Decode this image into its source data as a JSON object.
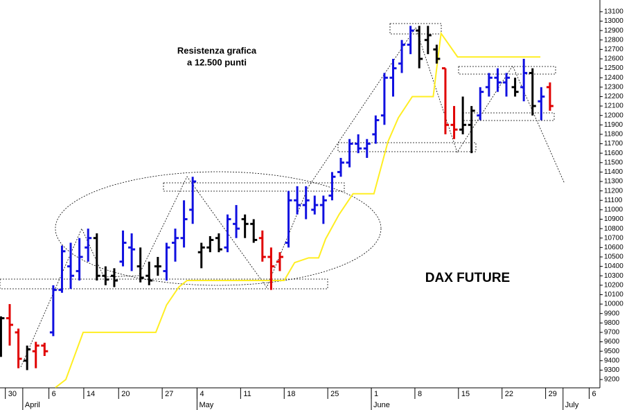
{
  "chart_data": {
    "type": "ohlc",
    "annotations": [
      [
        "Resistenza grafica",
        "a 12.500 punti"
      ],
      "DAX FUTURE"
    ],
    "x": [
      -1,
      0,
      1,
      2,
      3,
      4,
      5,
      6,
      7,
      8,
      9,
      10,
      11,
      12,
      13,
      14,
      15,
      16,
      17,
      18,
      19,
      20,
      21,
      22,
      23,
      24,
      25,
      26,
      27,
      28,
      29,
      30,
      31,
      32,
      33,
      34,
      35,
      36,
      37,
      38,
      39,
      40,
      41,
      42,
      43,
      44,
      45,
      46,
      47,
      48,
      49,
      50,
      51,
      52,
      53,
      54,
      55,
      56,
      57,
      58,
      59,
      60,
      61,
      62
    ],
    "open": [
      9520,
      9850,
      9700,
      9400,
      9500,
      9560,
      9700,
      10150,
      10400,
      10350,
      10600,
      10700,
      10300,
      10300,
      10450,
      10600,
      10400,
      10300,
      10400,
      10350,
      10650,
      10700,
      11000,
      10550,
      10600,
      10700,
      10600,
      10850,
      10900,
      10850,
      10700,
      10500,
      10450,
      10650,
      11100,
      11050,
      11000,
      11050,
      11150,
      11400,
      11500,
      11700,
      11650,
      11800,
      12000,
      12400,
      12550,
      12750,
      12900,
      12800,
      12700,
      12500,
      11900,
      11850,
      11900,
      12000,
      12300,
      12400,
      12350,
      12300,
      12300,
      12450,
      12150,
      12300
    ],
    "high": [
      9870,
      10000,
      9740,
      9560,
      9600,
      9590,
      10200,
      10620,
      10650,
      10700,
      10800,
      10750,
      10400,
      10380,
      10780,
      10750,
      10600,
      10450,
      10500,
      10650,
      10800,
      11100,
      11350,
      10650,
      10720,
      10750,
      10950,
      11050,
      10950,
      10900,
      10780,
      10600,
      10550,
      11200,
      11250,
      11250,
      11150,
      11150,
      11400,
      11550,
      11750,
      11800,
      11750,
      12000,
      12450,
      12600,
      12800,
      12950,
      12950,
      12950,
      12750,
      12500,
      12100,
      12200,
      12100,
      12300,
      12450,
      12500,
      12450,
      12400,
      12600,
      12500,
      12300,
      12350
    ],
    "low": [
      9440,
      9560,
      9320,
      9300,
      9320,
      9450,
      9660,
      10120,
      10160,
      10250,
      10450,
      10250,
      10200,
      10180,
      10400,
      10350,
      10230,
      10200,
      10300,
      10250,
      10450,
      10600,
      10850,
      10380,
      10550,
      10550,
      10550,
      10700,
      10700,
      10650,
      10450,
      10150,
      10350,
      10600,
      10950,
      10900,
      10950,
      10850,
      11100,
      11350,
      11450,
      11600,
      11550,
      11700,
      11900,
      12200,
      12450,
      12650,
      12500,
      12650,
      12550,
      11800,
      11750,
      11800,
      11600,
      11950,
      12200,
      12250,
      12200,
      12200,
      12150,
      12000,
      11950,
      12050
    ],
    "close": [
      9850,
      9780,
      9420,
      9520,
      9560,
      9500,
      10150,
      10560,
      10300,
      10500,
      10700,
      10300,
      10260,
      10250,
      10650,
      10580,
      10280,
      10250,
      10400,
      10600,
      10700,
      10900,
      11300,
      10600,
      10680,
      10580,
      10900,
      10800,
      10850,
      10680,
      10500,
      10400,
      10500,
      11100,
      11050,
      11100,
      11050,
      11100,
      11350,
      11500,
      11700,
      11650,
      11700,
      11950,
      12400,
      12500,
      12750,
      12900,
      12600,
      12850,
      12600,
      11900,
      11850,
      11900,
      12050,
      12250,
      12400,
      12350,
      12400,
      12250,
      12450,
      12100,
      12200,
      12100
    ],
    "colors": [
      "#000000",
      "#e00000",
      "#e00000",
      "#000000",
      "#e00000",
      "#e00000",
      "#1010e0",
      "#1010e0",
      "#1010e0",
      "#1010e0",
      "#1010e0",
      "#000000",
      "#000000",
      "#000000",
      "#1010e0",
      "#1010e0",
      "#000000",
      "#000000",
      "#000000",
      "#1010e0",
      "#1010e0",
      "#1010e0",
      "#1010e0",
      "#000000",
      "#000000",
      "#000000",
      "#1010e0",
      "#1010e0",
      "#000000",
      "#000000",
      "#e00000",
      "#e00000",
      "#e00000",
      "#1010e0",
      "#1010e0",
      "#1010e0",
      "#1010e0",
      "#1010e0",
      "#1010e0",
      "#1010e0",
      "#1010e0",
      "#1010e0",
      "#1010e0",
      "#1010e0",
      "#1010e0",
      "#1010e0",
      "#1010e0",
      "#1010e0",
      "#000000",
      "#000000",
      "#000000",
      "#e00000",
      "#e00000",
      "#000000",
      "#000000",
      "#1010e0",
      "#1010e0",
      "#1010e0",
      "#1010e0",
      "#000000",
      "#1010e0",
      "#000000",
      "#1010e0",
      "#e00000"
    ],
    "overlay": {
      "color": "#ffee22",
      "x": [
        5.25,
        6.44,
        8.43,
        16.77,
        18.0,
        19.4,
        20.35,
        31.5,
        32.7,
        34.3,
        35.45,
        36.25,
        37.8,
        39.4,
        41.8,
        43.4,
        44.6,
        46.2,
        48.6,
        49.5,
        51.4,
        60.9
      ],
      "values": [
        9115,
        9200,
        9700,
        9700,
        9990,
        10180,
        10250,
        10250,
        10440,
        10490,
        10490,
        10690,
        10950,
        11170,
        11170,
        11720,
        11975,
        12200,
        12200,
        12870,
        12620,
        12620
      ]
    },
    "xlim": [
      -1.113,
      67.73
    ],
    "ylim": [
      9112,
      13224
    ],
    "xticks": [
      {
        "value": 0,
        "label": "30"
      },
      {
        "value": 5,
        "label": "6"
      },
      {
        "value": 9,
        "label": "14"
      },
      {
        "value": 13,
        "label": "20"
      },
      {
        "value": 18,
        "label": "27"
      },
      {
        "value": 22,
        "label": "4"
      },
      {
        "value": 27,
        "label": "11"
      },
      {
        "value": 32,
        "label": "18"
      },
      {
        "value": 37,
        "label": "25"
      },
      {
        "value": 42,
        "label": "1"
      },
      {
        "value": 47,
        "label": "8"
      },
      {
        "value": 52,
        "label": "15"
      },
      {
        "value": 57,
        "label": "22"
      },
      {
        "value": 62,
        "label": "29"
      },
      {
        "value": 67,
        "label": "6"
      }
    ],
    "month_ticks": [
      {
        "value": 2,
        "label": "April"
      },
      {
        "value": 22,
        "label": "May"
      },
      {
        "value": 42,
        "label": "June"
      },
      {
        "value": 64,
        "label": "July"
      }
    ],
    "yticks": [
      9200,
      9300,
      9400,
      9500,
      9600,
      9700,
      9800,
      9900,
      10000,
      10100,
      10200,
      10300,
      10400,
      10500,
      10600,
      10700,
      10800,
      10900,
      11000,
      11100,
      11200,
      11300,
      11400,
      11500,
      11600,
      11700,
      11800,
      11900,
      12000,
      12100,
      12200,
      12300,
      12400,
      12500,
      12600,
      12700,
      12800,
      12900,
      13000,
      13100
    ]
  }
}
